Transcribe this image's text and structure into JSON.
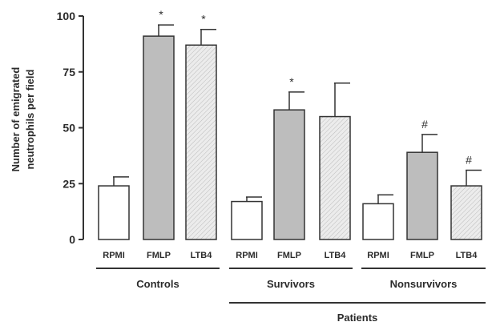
{
  "chart_data": {
    "type": "bar",
    "ylabel": [
      "Number of emigrated",
      "neutrophils per field"
    ],
    "ylim": [
      0,
      100
    ],
    "yticks": [
      0,
      25,
      50,
      75,
      100
    ],
    "grid": false,
    "groups": [
      {
        "label": "Controls"
      },
      {
        "label": "Survivors"
      },
      {
        "label": "Nonsurvivors"
      }
    ],
    "supergroup": {
      "label": "Patients",
      "spans": [
        "Survivors",
        "Nonsurvivors"
      ]
    },
    "bars": [
      {
        "group": "Controls",
        "category": "RPMI",
        "value": 24,
        "error": 4,
        "fill": "white",
        "marker": ""
      },
      {
        "group": "Controls",
        "category": "FMLP",
        "value": 91,
        "error": 5,
        "fill": "gray",
        "marker": "*"
      },
      {
        "group": "Controls",
        "category": "LTB4",
        "value": 87,
        "error": 7,
        "fill": "hatched",
        "marker": "*"
      },
      {
        "group": "Survivors",
        "category": "RPMI",
        "value": 17,
        "error": 2,
        "fill": "white",
        "marker": ""
      },
      {
        "group": "Survivors",
        "category": "FMLP",
        "value": 58,
        "error": 8,
        "fill": "gray",
        "marker": "*"
      },
      {
        "group": "Survivors",
        "category": "LTB4",
        "value": 55,
        "error": 15,
        "fill": "hatched",
        "marker": ""
      },
      {
        "group": "Nonsurvivors",
        "category": "RPMI",
        "value": 16,
        "error": 4,
        "fill": "white",
        "marker": ""
      },
      {
        "group": "Nonsurvivors",
        "category": "FMLP",
        "value": 39,
        "error": 8,
        "fill": "gray",
        "marker": "#"
      },
      {
        "group": "Nonsurvivors",
        "category": "LTB4",
        "value": 24,
        "error": 7,
        "fill": "hatched",
        "marker": "#"
      }
    ],
    "colors": {
      "gray": "#bdbdbd",
      "white": "#ffffff",
      "hatched": "#e6e6e6",
      "axis": "#333333"
    }
  }
}
